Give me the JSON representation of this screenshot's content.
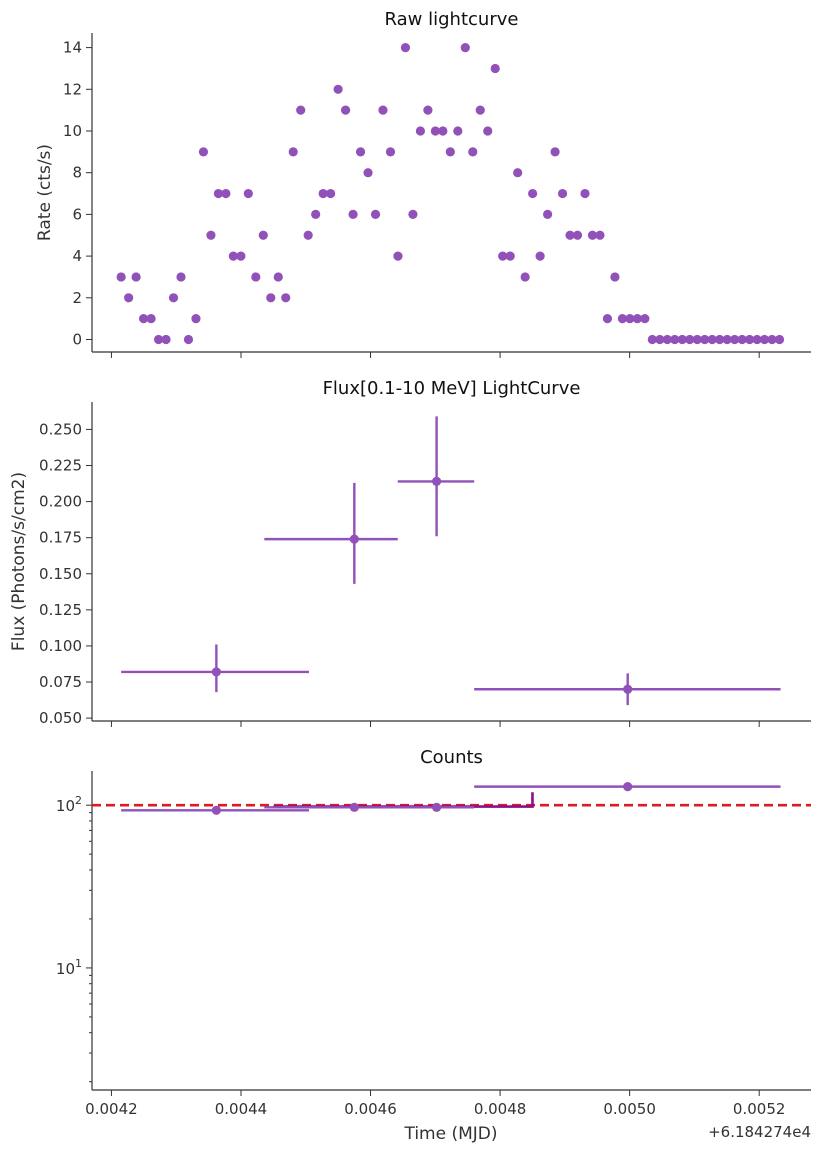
{
  "figure": {
    "xlabel": "Time (MJD)",
    "x_offset_label": "+6.184274e4"
  },
  "colors": {
    "points": "#9251b8",
    "reference_line": "#e31a1c",
    "step": "#8b0f8b",
    "axes": "#333333"
  },
  "chart_data": [
    {
      "type": "scatter",
      "title": "Raw lightcurve",
      "ylabel": "Rate (cts/s)",
      "xlim": [
        0.00417,
        0.00528
      ],
      "ylim": [
        -0.6,
        14.7
      ],
      "yticks": [
        0,
        2,
        4,
        6,
        8,
        10,
        12,
        14
      ],
      "xticks": [
        0.0042,
        0.0044,
        0.0046,
        0.0048,
        0.005,
        0.0052
      ],
      "x_start": 0.004215,
      "x_step": 1.155e-05,
      "y": [
        3,
        2,
        3,
        1,
        1,
        0,
        0,
        2,
        3,
        0,
        1,
        9,
        5,
        7,
        7,
        4,
        4,
        7,
        3,
        5,
        2,
        3,
        2,
        9,
        11,
        5,
        6,
        7,
        7,
        12,
        11,
        6,
        9,
        8,
        6,
        11,
        9,
        4,
        14,
        6,
        10,
        11,
        10,
        10,
        9,
        10,
        14,
        9,
        11,
        10,
        13,
        4,
        4,
        8,
        3,
        7,
        4,
        6,
        9,
        7,
        5,
        5,
        7,
        5,
        5,
        1,
        3,
        1,
        1,
        1,
        1,
        0,
        0,
        0,
        0,
        0,
        0,
        0,
        0,
        0,
        0,
        0,
        0,
        0,
        0,
        0,
        0,
        0,
        0
      ]
    },
    {
      "type": "scatter",
      "title": "Flux[0.1-10 MeV] LightCurve",
      "ylabel": "Flux (Photons/s/cm2)",
      "xlim": [
        0.00417,
        0.00528
      ],
      "ylim": [
        0.048,
        0.269
      ],
      "yticks": [
        0.05,
        0.075,
        0.1,
        0.125,
        0.15,
        0.175,
        0.2,
        0.225,
        0.25
      ],
      "ytick_labels": [
        "0.050",
        "0.075",
        "0.100",
        "0.125",
        "0.150",
        "0.175",
        "0.200",
        "0.225",
        "0.250"
      ],
      "xticks": [
        0.0042,
        0.0044,
        0.0046,
        0.0048,
        0.005,
        0.0052
      ],
      "points": [
        {
          "x": 0.004362,
          "y": 0.082,
          "xerr": [
            0.004215,
            0.004505
          ],
          "yerr": [
            0.068,
            0.101
          ]
        },
        {
          "x": 0.004575,
          "y": 0.174,
          "xerr": [
            0.004436,
            0.004642
          ],
          "yerr": [
            0.143,
            0.213
          ]
        },
        {
          "x": 0.004702,
          "y": 0.214,
          "xerr": [
            0.004642,
            0.00476
          ],
          "yerr": [
            0.176,
            0.259
          ]
        },
        {
          "x": 0.004997,
          "y": 0.07,
          "xerr": [
            0.00476,
            0.005233
          ],
          "yerr": [
            0.059,
            0.081
          ]
        }
      ]
    },
    {
      "type": "scatter",
      "title": "Counts",
      "yscale": "log",
      "xlim": [
        0.00417,
        0.00528
      ],
      "ylim_log10": [
        0.25,
        2.21
      ],
      "yticks": [
        10,
        100
      ],
      "ytick_labels": [
        [
          "10",
          "1"
        ],
        [
          "10",
          "2"
        ]
      ],
      "xticks": [
        0.0042,
        0.0044,
        0.0046,
        0.0048,
        0.005,
        0.0052
      ],
      "xtick_labels": [
        "0.0042",
        "0.0044",
        "0.0046",
        "0.0048",
        "0.0050",
        "0.0052"
      ],
      "reference_line": 100,
      "step": [
        [
          0.00445,
          98
        ],
        [
          0.00485,
          98
        ],
        [
          0.00485,
          120
        ]
      ],
      "points": [
        {
          "x": 0.004362,
          "y": 93,
          "xerr": [
            0.004215,
            0.004505
          ]
        },
        {
          "x": 0.004575,
          "y": 97,
          "xerr": [
            0.004436,
            0.004642
          ]
        },
        {
          "x": 0.004702,
          "y": 97,
          "xerr": [
            0.004642,
            0.00476
          ]
        },
        {
          "x": 0.004997,
          "y": 130,
          "xerr": [
            0.00476,
            0.005233
          ]
        }
      ]
    }
  ]
}
